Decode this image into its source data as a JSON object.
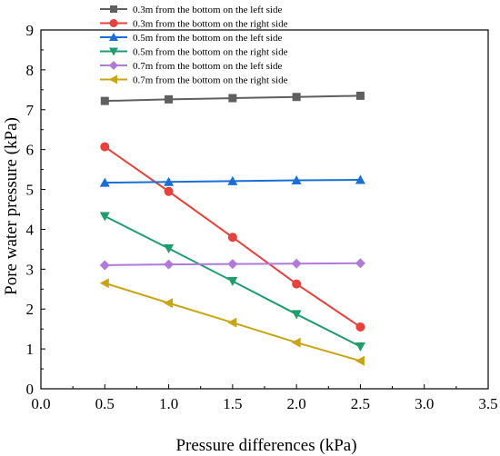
{
  "chart_data": {
    "type": "line",
    "xlabel": "Pressure differences (kPa)",
    "ylabel": "Pore water pressure (kPa)",
    "xlim": [
      0.0,
      3.5
    ],
    "ylim": [
      0,
      9
    ],
    "x_ticks": [
      0.0,
      0.5,
      1.0,
      1.5,
      2.0,
      2.5,
      3.0,
      3.5
    ],
    "x_tick_labels": [
      "0.0",
      "0.5",
      "1.0",
      "1.5",
      "2.0",
      "2.5",
      "3.0",
      "3.5"
    ],
    "y_ticks": [
      0,
      1,
      2,
      3,
      4,
      5,
      6,
      7,
      8,
      9
    ],
    "y_tick_labels": [
      "0",
      "1",
      "2",
      "3",
      "4",
      "5",
      "6",
      "7",
      "8",
      "9"
    ],
    "grid": false,
    "legend_position": "top-left",
    "x": [
      0.5,
      1.0,
      1.5,
      2.0,
      2.5
    ],
    "series": [
      {
        "name": "0.3m from the bottom on the left side",
        "color": "#5f5f5f",
        "marker": "square",
        "values": [
          7.22,
          7.26,
          7.29,
          7.32,
          7.35
        ]
      },
      {
        "name": "0.3m from the bottom on the right side",
        "color": "#e8413b",
        "marker": "circle",
        "values": [
          6.07,
          4.95,
          3.8,
          2.63,
          1.55
        ]
      },
      {
        "name": "0.5m from the bottom on the left side",
        "color": "#1a6fd6",
        "marker": "triangle-up",
        "values": [
          5.17,
          5.19,
          5.21,
          5.23,
          5.24
        ]
      },
      {
        "name": "0.5m from the bottom on the right side",
        "color": "#1e9e6d",
        "marker": "triangle-down",
        "values": [
          4.33,
          3.52,
          2.7,
          1.87,
          1.06
        ]
      },
      {
        "name": "0.7m from the bottom on the left side",
        "color": "#b07ad9",
        "marker": "diamond",
        "values": [
          3.1,
          3.12,
          3.13,
          3.14,
          3.15
        ]
      },
      {
        "name": "0.7m from the bottom on the right side",
        "color": "#c9a414",
        "marker": "triangle-left",
        "values": [
          2.65,
          2.15,
          1.66,
          1.16,
          0.7
        ]
      }
    ]
  }
}
